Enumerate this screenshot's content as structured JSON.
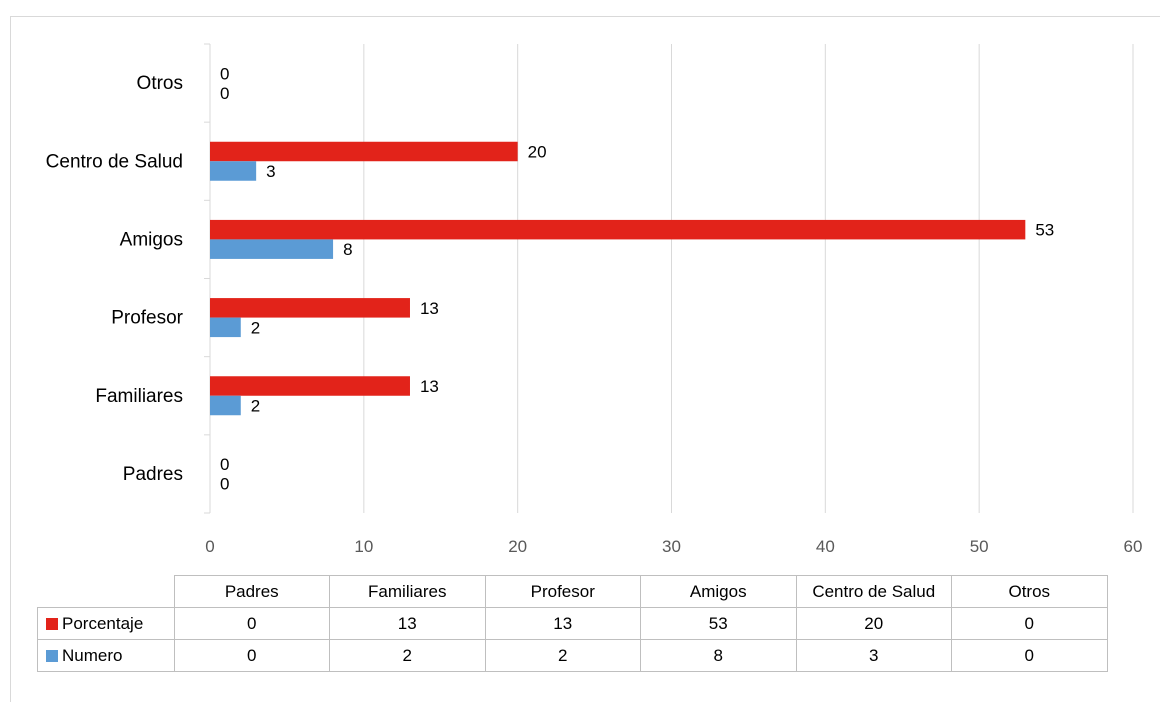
{
  "chart_data": {
    "type": "bar",
    "orientation": "horizontal",
    "categories": [
      "Padres",
      "Familiares",
      "Profesor",
      "Amigos",
      "Centro de Salud",
      "Otros"
    ],
    "series": [
      {
        "name": "Porcentaje",
        "color": "#e2231a",
        "values": [
          0,
          13,
          13,
          53,
          20,
          0
        ]
      },
      {
        "name": "Numero",
        "color": "#5b9bd5",
        "values": [
          0,
          2,
          2,
          8,
          3,
          0
        ]
      }
    ],
    "xlim": [
      0,
      60
    ],
    "xticks": [
      "0",
      "10",
      "20",
      "30",
      "40",
      "50",
      "60"
    ],
    "grid": true,
    "data_labels": true,
    "data_table": true
  }
}
